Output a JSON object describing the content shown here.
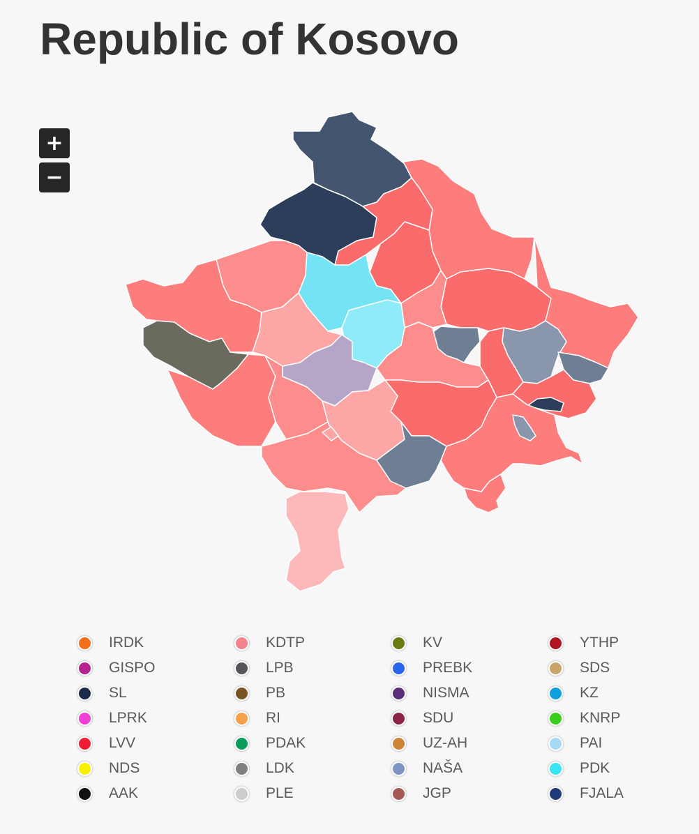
{
  "title": "Republic of Kosovo",
  "zoom": {
    "in_label": "+",
    "out_label": "−"
  },
  "map": {
    "region_colors": {
      "navy": "#2c3e5a",
      "slate": "#43556f",
      "grey_blue": "#6e7e93",
      "olive_grey": "#6b6a5f",
      "cyan": "#74e3f3",
      "light_cyan": "#8eebf7",
      "lavender": "#b5a6c7",
      "red_dark": "#fa6b6b",
      "red": "#fd7c7c",
      "salmon": "#fd8d8d",
      "light_salmon": "#fca6a6",
      "pale_pink": "#fdb9b9",
      "blue_grey_light": "#8a96ac"
    }
  },
  "legend": [
    {
      "label": "IRDK",
      "color": "#f46d1a"
    },
    {
      "label": "KDTP",
      "color": "#f4838c"
    },
    {
      "label": "KV",
      "color": "#6b7a12"
    },
    {
      "label": "YTHP",
      "color": "#b01522"
    },
    {
      "label": "GISPO",
      "color": "#b5218f"
    },
    {
      "label": "LPB",
      "color": "#55555c"
    },
    {
      "label": "PREBK",
      "color": "#2b63ef"
    },
    {
      "label": "SDS",
      "color": "#c9a56b"
    },
    {
      "label": "SL",
      "color": "#1b2a4a"
    },
    {
      "label": "PB",
      "color": "#7a5423"
    },
    {
      "label": "NISMA",
      "color": "#5a2f7a"
    },
    {
      "label": "KZ",
      "color": "#119fdc"
    },
    {
      "label": "LPRK",
      "color": "#f03fd6"
    },
    {
      "label": "RI",
      "color": "#f7a04a"
    },
    {
      "label": "SDU",
      "color": "#8e2349"
    },
    {
      "label": "KNRP",
      "color": "#3ccd1c"
    },
    {
      "label": "LVV",
      "color": "#ef1e35"
    },
    {
      "label": "PDAK",
      "color": "#0c9c5a"
    },
    {
      "label": "UZ-AH",
      "color": "#cd8437"
    },
    {
      "label": "PAI",
      "color": "#a6d9f6"
    },
    {
      "label": "NDS",
      "color": "#f9f000"
    },
    {
      "label": "LDK",
      "color": "#808080"
    },
    {
      "label": "NAŠA",
      "color": "#8094c3"
    },
    {
      "label": "PDK",
      "color": "#38e3f3"
    },
    {
      "label": "AAK",
      "color": "#111111"
    },
    {
      "label": "PLE",
      "color": "#cccccc"
    },
    {
      "label": "JGP",
      "color": "#a65a58"
    },
    {
      "label": "FJALA",
      "color": "#213a78"
    }
  ]
}
